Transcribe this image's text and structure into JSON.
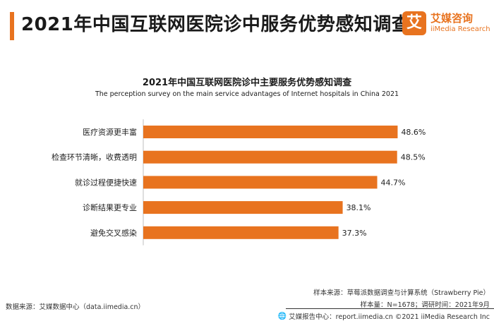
{
  "header": {
    "title": "2021年中国互联网医院诊中服务优势感知调查",
    "accent_color": "#e8731f"
  },
  "logo": {
    "mark": "艾",
    "name_cn": "艾媒咨询",
    "name_en": "iiMedia Research"
  },
  "chart_data": {
    "type": "bar",
    "orientation": "horizontal",
    "title": "2021年中国互联网医院诊中主要服务优势感知调查",
    "subtitle": "The perception survey on the  main service advantages of Internet hospitals in China  2021",
    "categories": [
      "医疗资源更丰富",
      "检查环节清晰，收费透明",
      "就诊过程便捷快速",
      "诊断结果更专业",
      "避免交叉感染"
    ],
    "values": [
      48.6,
      48.5,
      44.7,
      38.1,
      37.3
    ],
    "value_labels": [
      "48.6%",
      "48.5%",
      "44.7%",
      "38.1%",
      "37.3%"
    ],
    "unit": "%",
    "xlim": [
      0,
      60
    ],
    "grid": false,
    "legend": "none",
    "bar_color": "#e8731f"
  },
  "footer": {
    "source": "数据来源：艾媒数据中心（data.iimedia.cn）",
    "sample_source": "样本来源：草莓派数据调查与计算系统（Strawberry  Pie）",
    "sample_info": "样本量：N=1678；调研时间：2021年9月",
    "report_center": "艾媒报告中心：report.iimedia.cn   ©2021  iiMedia Research  Inc"
  }
}
